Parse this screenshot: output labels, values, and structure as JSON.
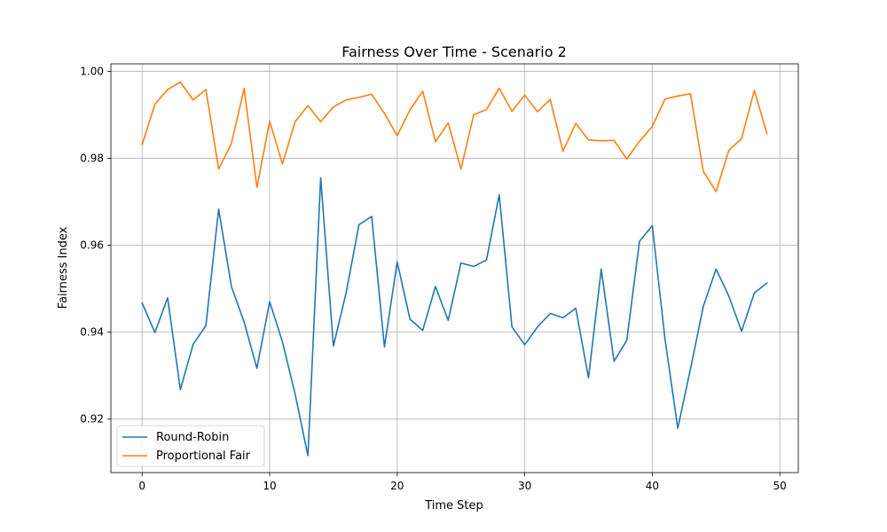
{
  "chart_data": {
    "type": "line",
    "title": "Fairness Over Time - Scenario 2",
    "xlabel": "Time Step",
    "ylabel": "Fairness Index",
    "xlim": [
      -2.45,
      51.45
    ],
    "ylim": [
      0.9077,
      1.0017
    ],
    "xticks": [
      0,
      10,
      20,
      30,
      40,
      50
    ],
    "xtick_labels": [
      "0",
      "10",
      "20",
      "30",
      "40",
      "50"
    ],
    "yticks": [
      0.92,
      0.94,
      0.96,
      0.98,
      1.0
    ],
    "ytick_labels": [
      "0.92",
      "0.94",
      "0.96",
      "0.98",
      "1.00"
    ],
    "grid": true,
    "legend_position": "lower-left",
    "x": [
      0,
      1,
      2,
      3,
      4,
      5,
      6,
      7,
      8,
      9,
      10,
      11,
      12,
      13,
      14,
      15,
      16,
      17,
      18,
      19,
      20,
      21,
      22,
      23,
      24,
      25,
      26,
      27,
      28,
      29,
      30,
      31,
      32,
      33,
      34,
      35,
      36,
      37,
      38,
      39,
      40,
      41,
      42,
      43,
      44,
      45,
      46,
      47,
      48,
      49
    ],
    "series": [
      {
        "name": "Round-Robin",
        "color": "#1f77b4",
        "values": [
          0.9467,
          0.9399,
          0.9479,
          0.9268,
          0.9372,
          0.9415,
          0.9683,
          0.9505,
          0.9423,
          0.9317,
          0.947,
          0.9378,
          0.9257,
          0.9116,
          0.9755,
          0.9368,
          0.9491,
          0.9647,
          0.9666,
          0.9366,
          0.9562,
          0.943,
          0.9404,
          0.9505,
          0.9427,
          0.9559,
          0.9551,
          0.9566,
          0.9716,
          0.9412,
          0.9371,
          0.9412,
          0.9443,
          0.9433,
          0.9455,
          0.9295,
          0.9545,
          0.9333,
          0.9381,
          0.9609,
          0.9645,
          0.9384,
          0.9179,
          0.9316,
          0.9459,
          0.9545,
          0.9483,
          0.9402,
          0.949,
          0.9513
        ]
      },
      {
        "name": "Proportional Fair",
        "color": "#ff7f0e",
        "values": [
          0.9831,
          0.9924,
          0.9958,
          0.9975,
          0.9934,
          0.9958,
          0.9775,
          0.9834,
          0.996,
          0.9733,
          0.9885,
          0.9787,
          0.9884,
          0.9921,
          0.9884,
          0.9918,
          0.9934,
          0.994,
          0.9947,
          0.9903,
          0.9852,
          0.9911,
          0.9954,
          0.9838,
          0.9881,
          0.9775,
          0.99,
          0.9912,
          0.9961,
          0.9908,
          0.9945,
          0.9907,
          0.9935,
          0.9816,
          0.988,
          0.9842,
          0.984,
          0.9841,
          0.9798,
          0.9839,
          0.9873,
          0.9936,
          0.9943,
          0.9948,
          0.977,
          0.9723,
          0.9818,
          0.9845,
          0.9956,
          0.9856
        ]
      }
    ]
  }
}
